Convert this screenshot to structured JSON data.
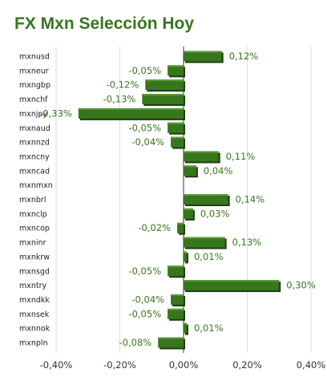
{
  "chart_data": {
    "type": "bar",
    "orientation": "horizontal",
    "title": "FX Mxn Selección Hoy",
    "categories": [
      "mxnusd",
      "mxneur",
      "mxngbp",
      "mxnchf",
      "mxnjpy",
      "mxnaud",
      "mxnnzd",
      "mxncny",
      "mxncad",
      "mxnmxn",
      "mxnbrl",
      "mxnclp",
      "mxncop",
      "mxninr",
      "mxnkrw",
      "mxnsgd",
      "mxntry",
      "mxndkk",
      "mxnsek",
      "mxnnok",
      "mxnpln"
    ],
    "values": [
      0.12,
      -0.05,
      -0.12,
      -0.13,
      -0.33,
      -0.05,
      -0.04,
      0.11,
      0.04,
      0,
      0.14,
      0.03,
      -0.02,
      0.13,
      0.01,
      -0.05,
      0.3,
      -0.04,
      -0.05,
      0.01,
      -0.08
    ],
    "value_labels": [
      "0,12%",
      "-0,05%",
      "-0,12%",
      "-0,13%",
      "-0,33%",
      "-0,05%",
      "-0,04%",
      "0,11%",
      "0,04%",
      "",
      "0,14%",
      "0,03%",
      "-0,02%",
      "0,13%",
      "0,01%",
      "-0,05%",
      "0,30%",
      "-0,04%",
      "-0,05%",
      "0,01%",
      "-0,08%"
    ],
    "xlim": [
      -0.4,
      0.4
    ],
    "x_ticks": [
      -0.4,
      -0.2,
      0,
      0.2,
      0.4
    ],
    "x_tick_labels": [
      "-0,40%",
      "-0,20%",
      "0,00%",
      "0,20%",
      "0,40%"
    ],
    "grid": true,
    "colors": {
      "bar": "#38761d",
      "bar_top": "#5a9a3a",
      "bar_shadow": "#1e3d0e",
      "label": "#38761d",
      "title": "#38761d",
      "grid": "#dddddd"
    }
  }
}
